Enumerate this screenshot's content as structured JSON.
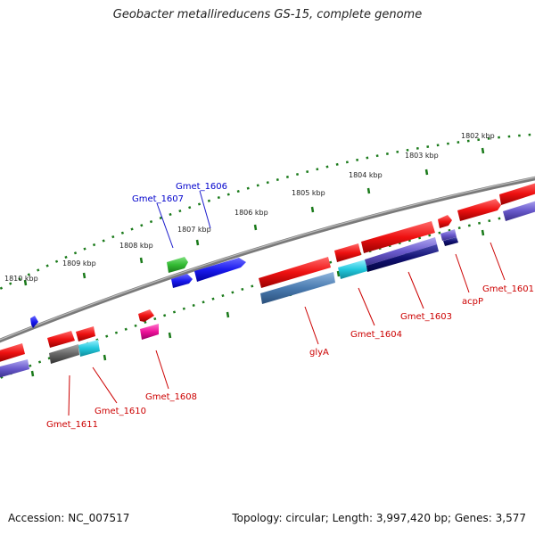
{
  "title": "Geobacter metallireducens GS-15, complete genome",
  "footer": {
    "accession": "Accession: NC_007517",
    "summary": "Topology: circular; Length: 3,997,420 bp; Genes: 3,577"
  },
  "ruler_labels": [
    "1810 kbp",
    "1809 kbp",
    "1808 kbp",
    "1807 kbp",
    "1806 kbp",
    "1805 kbp",
    "1804 kbp",
    "1803 kbp",
    "1802 kbp"
  ],
  "gene_labels": [
    {
      "id": "gmet-1607",
      "text": "Gmet_1607",
      "color": "#0000cc"
    },
    {
      "id": "gmet-1606",
      "text": "Gmet_1606",
      "color": "#0000cc"
    },
    {
      "id": "gmet-1611",
      "text": "Gmet_1611",
      "color": "#cc0000"
    },
    {
      "id": "gmet-1610",
      "text": "Gmet_1610",
      "color": "#cc0000"
    },
    {
      "id": "gmet-1608",
      "text": "Gmet_1608",
      "color": "#cc0000"
    },
    {
      "id": "glya",
      "text": "glyA",
      "color": "#cc0000"
    },
    {
      "id": "gmet-1604",
      "text": "Gmet_1604",
      "color": "#cc0000"
    },
    {
      "id": "gmet-1603",
      "text": "Gmet_1603",
      "color": "#cc0000"
    },
    {
      "id": "acpp",
      "text": "acpP",
      "color": "#cc0000"
    },
    {
      "id": "gmet-1601",
      "text": "Gmet_1601",
      "color": "#cc0000"
    }
  ],
  "colors": {
    "backbone": "#7a7a7a",
    "tick_green": "#1a7a1a",
    "gene_red": "#ee1111",
    "gene_blue": "#1a1aee",
    "gene_green": "#33bb33",
    "gene_magenta": "#ee1199",
    "gene_steel": "#4a7bb0",
    "gene_cyan": "#22c8dd",
    "gene_navy": "#101070",
    "gene_violet": "#6a5acd",
    "gene_gray": "#666666"
  }
}
